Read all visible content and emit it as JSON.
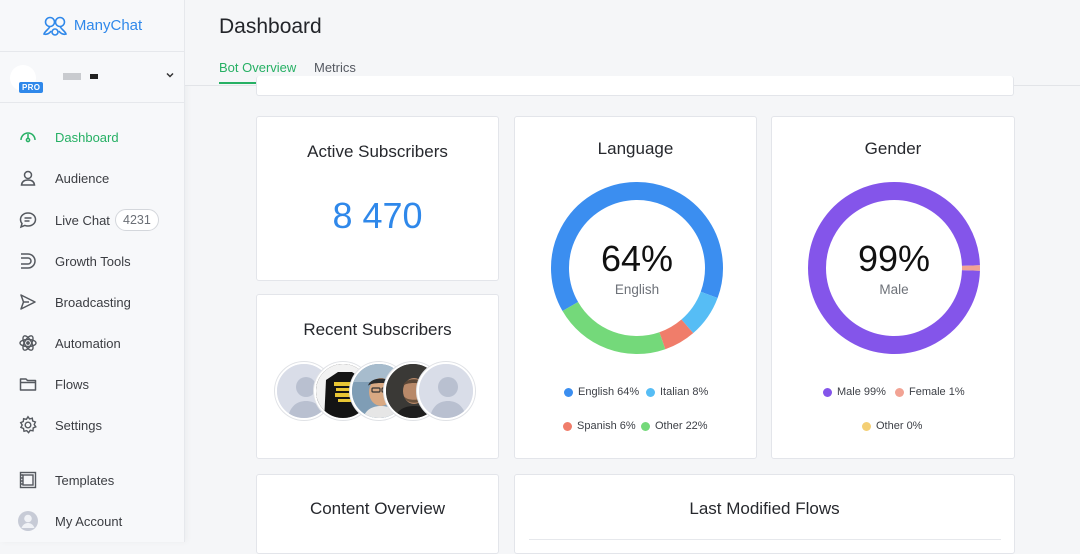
{
  "brand": {
    "name": "ManyChat",
    "color": "#2f88ea"
  },
  "account": {
    "badge": "PRO"
  },
  "sidebar": {
    "items": [
      {
        "label": "Dashboard",
        "icon": "dashboard-gauge-icon",
        "active": true
      },
      {
        "label": "Audience",
        "icon": "person-icon"
      },
      {
        "label": "Live Chat",
        "icon": "chat-bubble-icon",
        "badge": "4231"
      },
      {
        "label": "Growth Tools",
        "icon": "growth-tools-icon"
      },
      {
        "label": "Broadcasting",
        "icon": "send-icon"
      },
      {
        "label": "Automation",
        "icon": "atom-icon"
      },
      {
        "label": "Flows",
        "icon": "folder-icon"
      },
      {
        "label": "Settings",
        "icon": "gear-icon"
      },
      {
        "label": "Templates",
        "icon": "template-icon"
      },
      {
        "label": "My Account",
        "icon": "avatar-icon"
      }
    ]
  },
  "header": {
    "title": "Dashboard",
    "tabs": [
      {
        "label": "Bot Overview",
        "active": true
      },
      {
        "label": "Metrics"
      }
    ]
  },
  "cards": {
    "active_subscribers": {
      "title": "Active Subscribers",
      "value": "8 470"
    },
    "recent_subscribers": {
      "title": "Recent Subscribers"
    },
    "language": {
      "title": "Language",
      "center_value": "64%",
      "center_label": "English",
      "legend": [
        "English 64%",
        "Italian 8%",
        "Spanish 6%",
        "Other 22%"
      ]
    },
    "gender": {
      "title": "Gender",
      "center_value": "99%",
      "center_label": "Male",
      "legend": [
        "Male 99%",
        "Female 1%",
        "Other 0%"
      ]
    },
    "content_overview": {
      "title": "Content Overview"
    },
    "last_modified_flows": {
      "title": "Last Modified Flows"
    }
  },
  "chart_data": [
    {
      "type": "pie",
      "title": "Language",
      "categories": [
        "English",
        "Italian",
        "Spanish",
        "Other"
      ],
      "values": [
        64,
        8,
        6,
        22
      ],
      "colors": [
        "#3b8ef0",
        "#56bdf5",
        "#f07d6a",
        "#74d97a"
      ]
    },
    {
      "type": "pie",
      "title": "Gender",
      "categories": [
        "Male",
        "Female",
        "Other"
      ],
      "values": [
        99,
        1,
        0
      ],
      "colors": [
        "#8455ea",
        "#f2a394",
        "#f4cf74"
      ]
    }
  ]
}
